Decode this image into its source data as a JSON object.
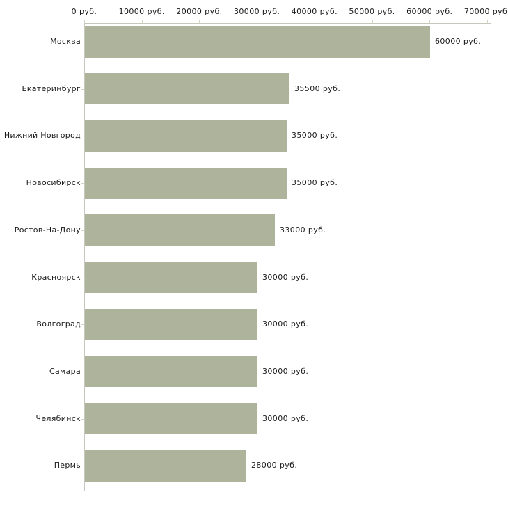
{
  "chart_data": {
    "type": "bar",
    "orientation": "horizontal",
    "categories": [
      "Москва",
      "Екатеринбург",
      "Нижний Новгород",
      "Новосибирск",
      "Ростов-На-Дону",
      "Красноярск",
      "Волгоград",
      "Самара",
      "Челябинск",
      "Пермь"
    ],
    "values": [
      60000,
      35500,
      35000,
      35000,
      33000,
      30000,
      30000,
      30000,
      30000,
      28000
    ],
    "value_labels": [
      "60000 руб.",
      "35500 руб.",
      "35000 руб.",
      "35000 руб.",
      "33000 руб.",
      "30000 руб.",
      "30000 руб.",
      "30000 руб.",
      "30000 руб.",
      "28000 руб."
    ],
    "x_ticks": [
      0,
      10000,
      20000,
      30000,
      40000,
      50000,
      60000,
      70000
    ],
    "x_tick_labels": [
      "0 руб.",
      "10000 руб.",
      "20000 руб.",
      "30000 руб.",
      "40000 руб.",
      "50000 руб.",
      "60000 руб.",
      "70000 руб."
    ],
    "xlim": [
      0,
      70000
    ],
    "unit": "руб.",
    "grid": false,
    "legend": "none",
    "bar_color": "#aeb49b",
    "axis_color": "#c6c8bc",
    "tick_color": "#d2d5c3",
    "text_color": "#1a1a1a"
  }
}
